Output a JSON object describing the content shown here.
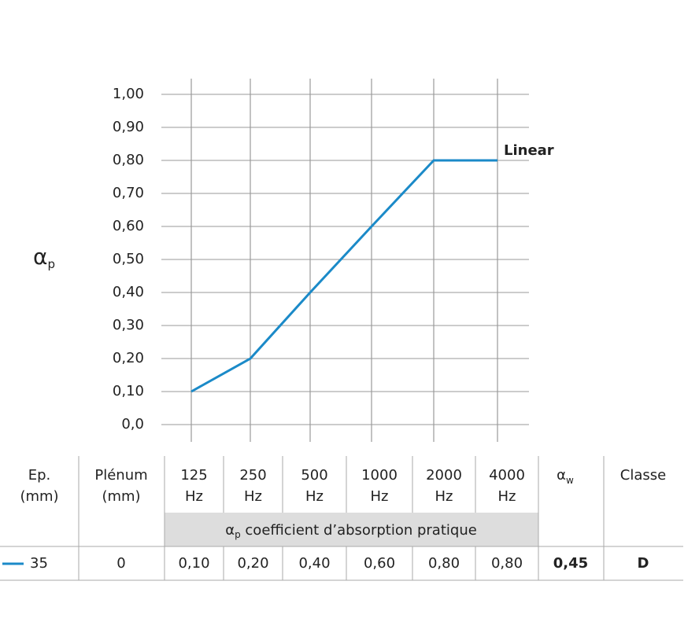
{
  "chart_data": {
    "type": "line",
    "ylabel": "α",
    "ylabel_sub": "p",
    "categories": [
      "125",
      "250",
      "500",
      "1000",
      "2000",
      "4000"
    ],
    "series": [
      {
        "name": "Linear",
        "color": "#1b8ac8",
        "values": [
          0.1,
          0.2,
          0.4,
          0.6,
          0.8,
          0.8
        ],
        "value_labels": [
          "0,10",
          "0,20",
          "0,40",
          "0,60",
          "0,80",
          "0,80"
        ]
      }
    ],
    "ylim": [
      0,
      1
    ],
    "yticks": [
      {
        "value": 0,
        "label": "0,0"
      },
      {
        "value": 0.1,
        "label": "0,10"
      },
      {
        "value": 0.2,
        "label": "0,20"
      },
      {
        "value": 0.3,
        "label": "0,30"
      },
      {
        "value": 0.4,
        "label": "0,40"
      },
      {
        "value": 0.5,
        "label": "0,50"
      },
      {
        "value": 0.6,
        "label": "0,60"
      },
      {
        "value": 0.7,
        "label": "0,70"
      },
      {
        "value": 0.8,
        "label": "0,80"
      },
      {
        "value": 0.9,
        "label": "0,90"
      },
      {
        "value": 1,
        "label": "1,00"
      }
    ],
    "grid": true
  },
  "table": {
    "col_headers": [
      [
        "Ep.",
        "(mm)"
      ],
      [
        "Plénum",
        "(mm)"
      ]
    ],
    "freq_unit": "Hz",
    "band_caption": {
      "symbol": "α",
      "sub": "p",
      "text": " coefficient d’absorption pratique"
    },
    "aw_header": {
      "symbol": "α",
      "sub": "w"
    },
    "classe_header": "Classe",
    "row": {
      "ep": "35",
      "plenum": "0",
      "aw": "0,45",
      "classe": "D"
    }
  }
}
